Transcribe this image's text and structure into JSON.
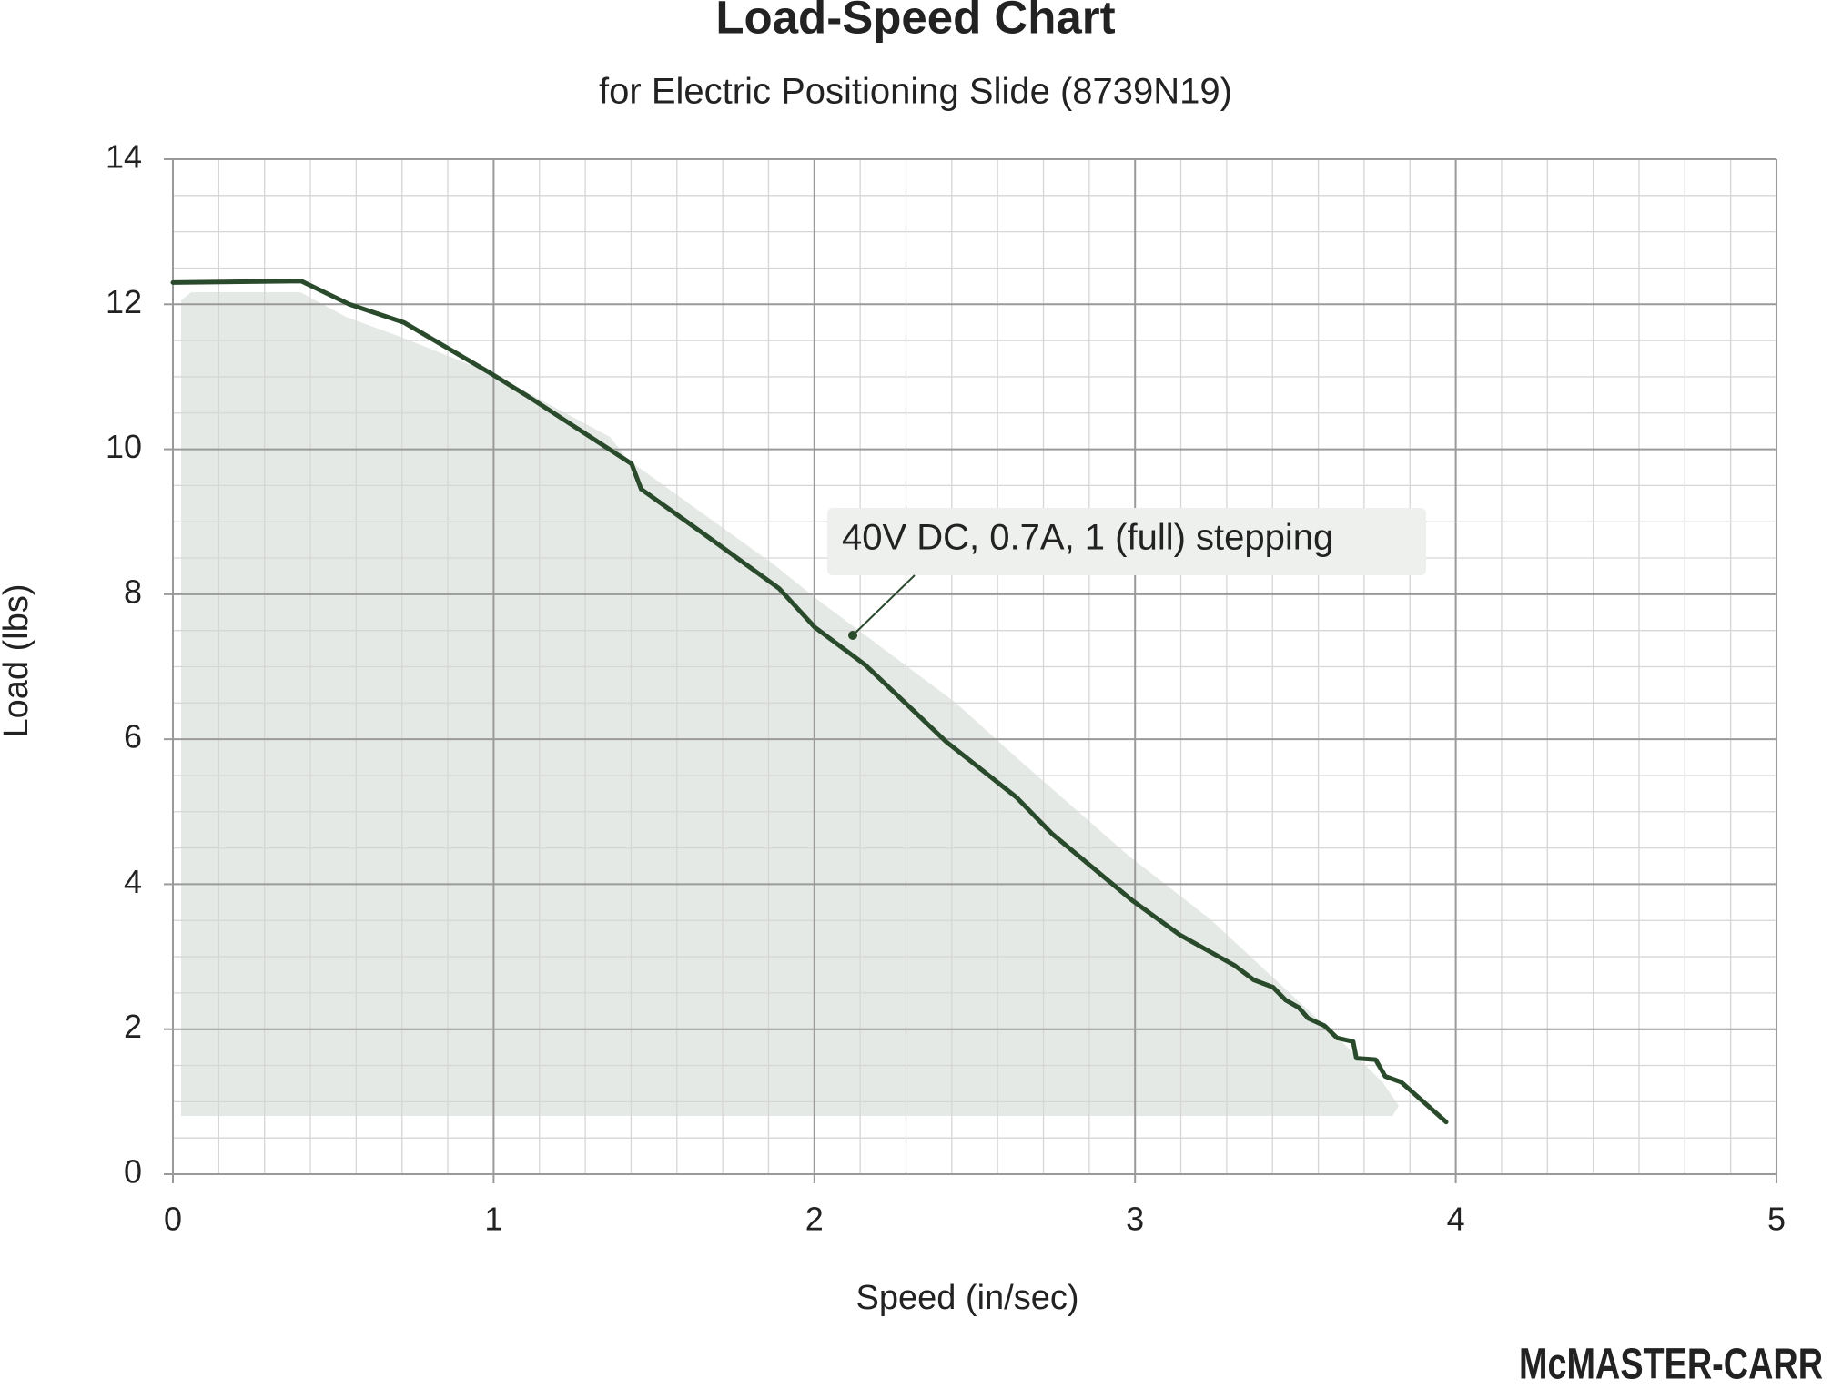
{
  "chart_data": {
    "type": "line",
    "title": "Load-Speed Chart",
    "subtitle": "for Electric Positioning Slide (8739N19)",
    "x_label": "Speed (in/sec)",
    "y_label": "Load (lbs)",
    "xlim": [
      0,
      5
    ],
    "ylim": [
      0,
      14
    ],
    "xticks": [
      0,
      1,
      2,
      3,
      4,
      5
    ],
    "yticks": [
      0,
      2,
      4,
      6,
      8,
      10,
      12,
      14
    ],
    "grid": true,
    "series": [
      {
        "name": "40V DC, 0.7A, 1 (full) stepping",
        "color": "#2a4a2c",
        "x": [
          0,
          0.4,
          0.55,
          0.72,
          0.99,
          1.1,
          1.43,
          1.46,
          1.65,
          1.89,
          2.0,
          2.16,
          2.41,
          2.63,
          2.74,
          2.99,
          3.14,
          3.31,
          3.37,
          3.43,
          3.47,
          3.51,
          3.54,
          3.59,
          3.63,
          3.68,
          3.69,
          3.75,
          3.78,
          3.83,
          3.97
        ],
        "values": [
          12.3,
          12.32,
          12.0,
          11.75,
          11.05,
          10.75,
          9.8,
          9.45,
          8.85,
          8.08,
          7.55,
          7.02,
          5.97,
          5.2,
          4.7,
          3.78,
          3.3,
          2.88,
          2.68,
          2.58,
          2.4,
          2.3,
          2.15,
          2.05,
          1.88,
          1.83,
          1.6,
          1.58,
          1.35,
          1.27,
          0.72
        ]
      }
    ],
    "logo": "McMASTER-CARR"
  }
}
